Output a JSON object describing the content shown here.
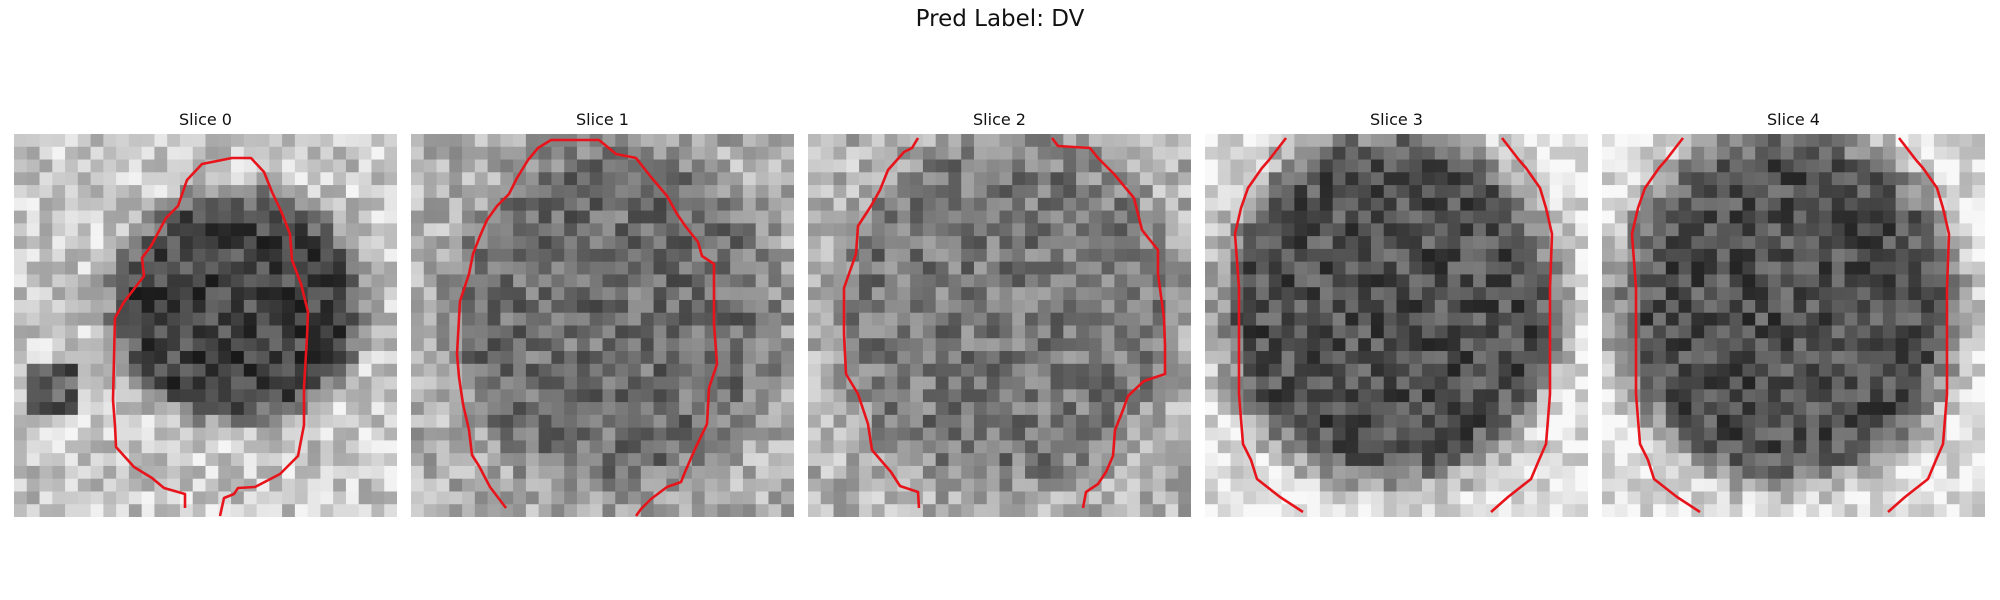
{
  "figure": {
    "title": "Pred Label: DV"
  },
  "slices": [
    {
      "label": "Slice 0"
    },
    {
      "label": "Slice 1"
    },
    {
      "label": "Slice 2"
    },
    {
      "label": "Slice 3"
    },
    {
      "label": "Slice 4"
    }
  ],
  "colors": {
    "contour": "#e8141b",
    "colormap": "grayscale"
  }
}
